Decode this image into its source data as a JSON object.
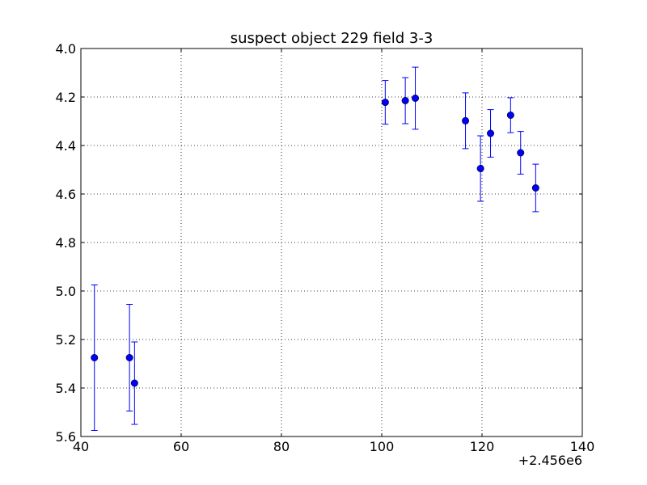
{
  "chart_data": {
    "type": "scatter",
    "title": "suspect object 229 field 3-3",
    "xlabel": "",
    "ylabel": "",
    "x_offset_label": "+2.456e6",
    "xlim": [
      40,
      140
    ],
    "ylim": [
      5.6,
      4.0
    ],
    "y_inverted": true,
    "grid": true,
    "x_ticks": [
      "40",
      "60",
      "80",
      "100",
      "120",
      "140"
    ],
    "y_ticks": [
      "4.0",
      "4.2",
      "4.4",
      "4.6",
      "4.8",
      "5.0",
      "5.2",
      "5.4",
      "5.6"
    ],
    "marker_color": "#0000ff",
    "series": [
      {
        "points": [
          {
            "x": 42.7,
            "y": 5.275,
            "err": 0.3
          },
          {
            "x": 49.7,
            "y": 5.275,
            "err": 0.22
          },
          {
            "x": 50.7,
            "y": 5.38,
            "err": 0.17
          },
          {
            "x": 100.7,
            "y": 4.222,
            "err": 0.09
          },
          {
            "x": 104.7,
            "y": 4.215,
            "err": 0.095
          },
          {
            "x": 106.7,
            "y": 4.205,
            "err": 0.128
          },
          {
            "x": 116.7,
            "y": 4.298,
            "err": 0.115
          },
          {
            "x": 119.7,
            "y": 4.495,
            "err": 0.135
          },
          {
            "x": 121.7,
            "y": 4.35,
            "err": 0.098
          },
          {
            "x": 125.7,
            "y": 4.275,
            "err": 0.072
          },
          {
            "x": 127.7,
            "y": 4.43,
            "err": 0.088
          },
          {
            "x": 130.7,
            "y": 4.575,
            "err": 0.098
          }
        ]
      }
    ]
  }
}
